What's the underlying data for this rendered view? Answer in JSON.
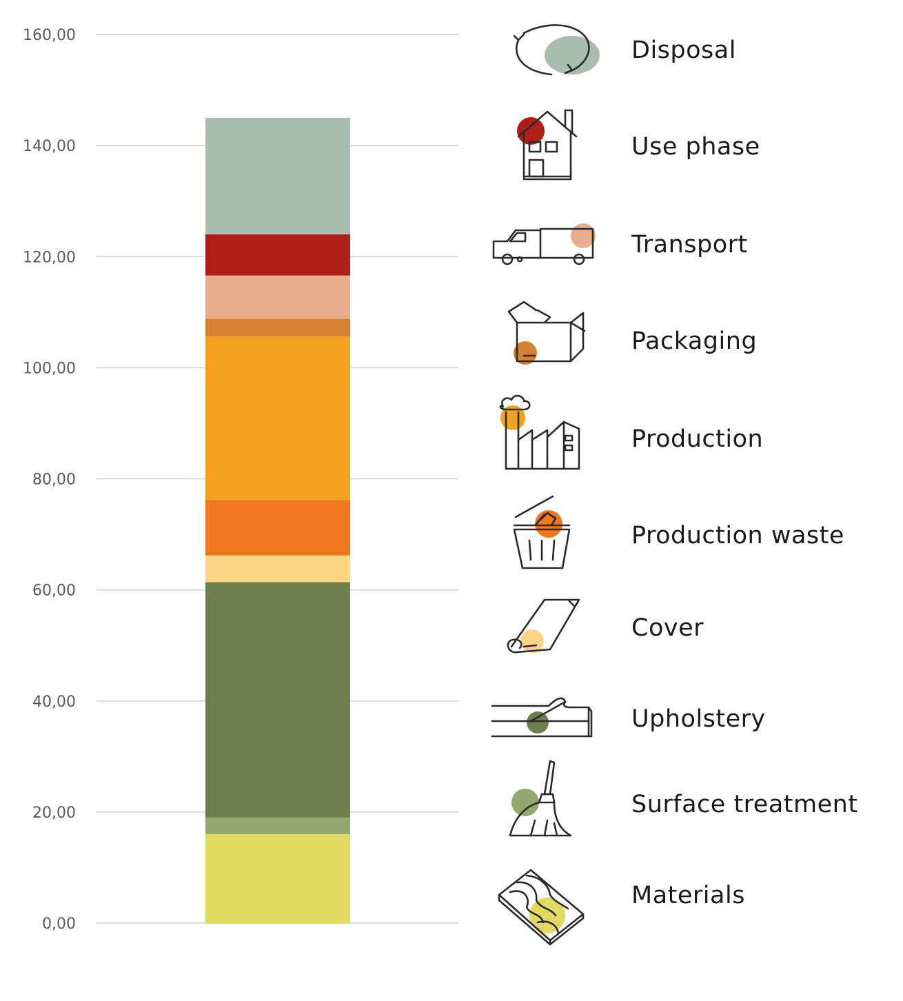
{
  "chart_data": {
    "type": "bar",
    "stacked": true,
    "categories": [
      ""
    ],
    "ylim": [
      0,
      160
    ],
    "y_ticks": [
      "0,00",
      "20,00",
      "40,00",
      "60,00",
      "80,00",
      "100,00",
      "120,00",
      "140,00",
      "160,00"
    ],
    "y_tick_values": [
      0,
      20,
      40,
      60,
      80,
      100,
      120,
      140,
      160
    ],
    "grid": true,
    "legend_position": "right",
    "series": [
      {
        "name": "Materials",
        "values": [
          16.0
        ],
        "color": "#e0da63",
        "icon": "wood-plank-icon"
      },
      {
        "name": "Surface treatment",
        "values": [
          3.0
        ],
        "color": "#93a86e",
        "icon": "brush-icon"
      },
      {
        "name": "Upholstery",
        "values": [
          42.4
        ],
        "color": "#6e7f4c",
        "icon": "foam-layers-icon"
      },
      {
        "name": "Cover",
        "values": [
          4.8
        ],
        "color": "#fdd584",
        "icon": "fabric-roll-icon"
      },
      {
        "name": "Production waste",
        "values": [
          10.0
        ],
        "color": "#ee771f",
        "icon": "trash-bin-icon"
      },
      {
        "name": "Production",
        "values": [
          29.4
        ],
        "color": "#f3a21f",
        "icon": "factory-icon"
      },
      {
        "name": "Packaging",
        "values": [
          3.2
        ],
        "color": "#d48131",
        "icon": "box-icon"
      },
      {
        "name": "Transport",
        "values": [
          7.8
        ],
        "color": "#e8ad8a",
        "icon": "truck-icon"
      },
      {
        "name": "Use phase",
        "values": [
          7.4
        ],
        "color": "#b01e18",
        "icon": "house-icon"
      },
      {
        "name": "Disposal",
        "values": [
          21.0
        ],
        "color": "#a8bdb0",
        "icon": "recycle-icon"
      }
    ],
    "legend_order": [
      "Disposal",
      "Use phase",
      "Transport",
      "Packaging",
      "Production",
      "Production waste",
      "Cover",
      "Upholstery",
      "Surface treatment",
      "Materials"
    ]
  }
}
